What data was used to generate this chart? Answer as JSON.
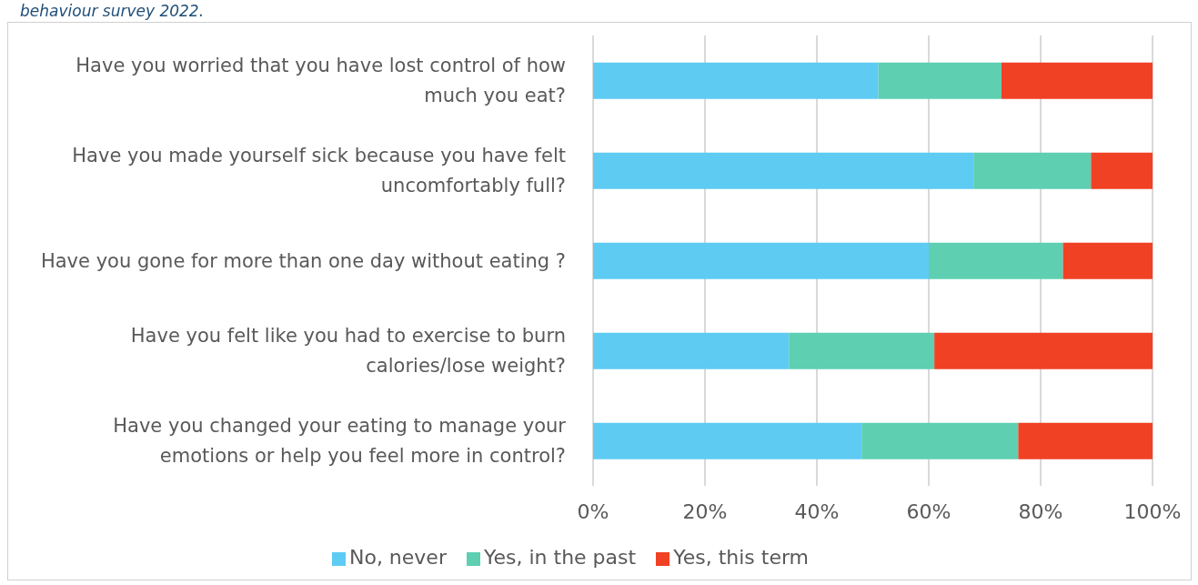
{
  "chart_data": {
    "type": "bar",
    "orientation": "horizontal",
    "stacked": true,
    "subtitle": "behaviour survey 2022.",
    "categories": [
      "Have you worried that you have lost control of how much you eat?",
      "Have you made yourself sick because you have felt uncomfortably full?",
      "Have you gone for more than one day without eating ?",
      "Have you felt like you had to exercise to burn calories/lose weight?",
      "Have you changed your eating to manage your emotions or help you feel more in control?"
    ],
    "series": [
      {
        "name": "No, never",
        "color": "#5ecbf3",
        "values": [
          51,
          68,
          60,
          35,
          48
        ]
      },
      {
        "name": "Yes, in the past",
        "color": "#5ecfb1",
        "values": [
          22,
          21,
          24,
          26,
          28
        ]
      },
      {
        "name": "Yes, this term",
        "color": "#f04124",
        "values": [
          27,
          11,
          16,
          39,
          24
        ]
      }
    ],
    "xlim": [
      0,
      100
    ],
    "xticks": [
      {
        "value": 0,
        "label": "0%"
      },
      {
        "value": 20,
        "label": "20%"
      },
      {
        "value": 40,
        "label": "40%"
      },
      {
        "value": 60,
        "label": "60%"
      },
      {
        "value": 80,
        "label": "80%"
      },
      {
        "value": 100,
        "label": "100%"
      }
    ],
    "grid": "x",
    "legend": "bottom"
  }
}
